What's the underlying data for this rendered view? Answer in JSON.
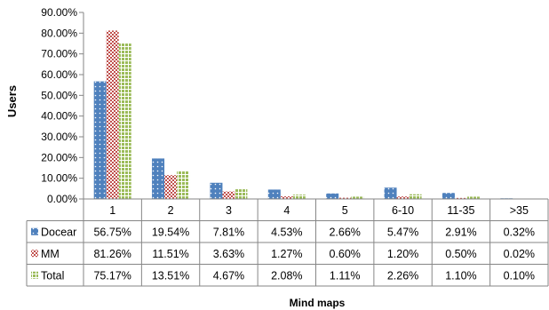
{
  "chart_data": {
    "type": "bar",
    "title": "",
    "xlabel": "Mind maps",
    "ylabel": "Users",
    "ylim": [
      0,
      0.9
    ],
    "y_ticks": [
      0,
      0.1,
      0.2,
      0.3,
      0.4,
      0.5,
      0.6,
      0.7,
      0.8,
      0.9
    ],
    "y_tick_labels": [
      "0.00%",
      "10.00%",
      "20.00%",
      "30.00%",
      "40.00%",
      "50.00%",
      "60.00%",
      "70.00%",
      "80.00%",
      "90.00%"
    ],
    "categories": [
      "1",
      "2",
      "3",
      "4",
      "5",
      "6-10",
      "11-35",
      ">35"
    ],
    "series": [
      {
        "name": "Docear",
        "color": "#4f81bd",
        "pattern": "dots",
        "values": [
          0.5675,
          0.1954,
          0.0781,
          0.0453,
          0.0266,
          0.0547,
          0.0291,
          0.0032
        ],
        "labels": [
          "56.75%",
          "19.54%",
          "7.81%",
          "4.53%",
          "2.66%",
          "5.47%",
          "2.91%",
          "0.32%"
        ]
      },
      {
        "name": "MM",
        "color": "#c0504d",
        "pattern": "checker",
        "values": [
          0.8126,
          0.1151,
          0.0363,
          0.0127,
          0.006,
          0.012,
          0.005,
          0.0002
        ],
        "labels": [
          "81.26%",
          "11.51%",
          "3.63%",
          "1.27%",
          "0.60%",
          "1.20%",
          "0.50%",
          "0.02%"
        ]
      },
      {
        "name": "Total",
        "color": "#9bbb59",
        "pattern": "grid",
        "values": [
          0.7517,
          0.1351,
          0.0467,
          0.0208,
          0.0111,
          0.0226,
          0.011,
          0.001
        ],
        "labels": [
          "75.17%",
          "13.51%",
          "4.67%",
          "2.08%",
          "1.11%",
          "2.26%",
          "1.10%",
          "0.10%"
        ]
      }
    ],
    "grid": false,
    "legend": "data-table"
  }
}
